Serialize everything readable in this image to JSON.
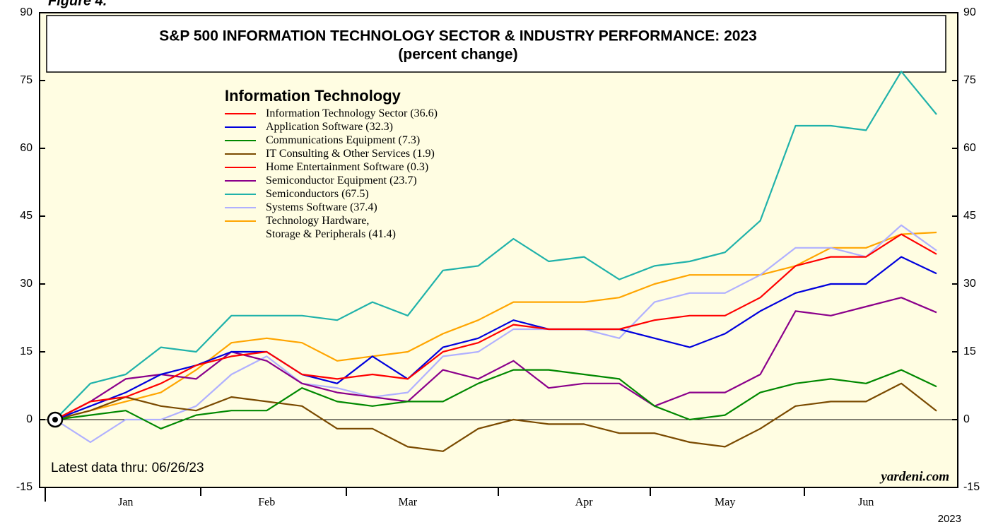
{
  "figure_label": "Figure 4.",
  "chart_data": {
    "type": "line",
    "title": "S&P 500 INFORMATION TECHNOLOGY SECTOR & INDUSTRY PERFORMANCE: 2023",
    "subtitle": "(percent change)",
    "legend_title": "Information Technology",
    "note": "Latest data thru: 06/26/23",
    "source": "yardeni.com",
    "year_label": "2023",
    "categories": [
      null,
      null,
      "Jan",
      null,
      null,
      null,
      "Feb",
      null,
      null,
      null,
      "Mar",
      null,
      null,
      null,
      null,
      "Apr",
      null,
      null,
      null,
      "May",
      null,
      null,
      null,
      "Jun",
      null,
      null
    ],
    "ylim": [
      -15,
      90
    ],
    "yticks": [
      -15,
      0,
      15,
      30,
      45,
      60,
      75,
      90
    ],
    "series": [
      {
        "name": "Information Technology Sector (36.6)",
        "color": "#ff0000",
        "values": [
          0,
          4,
          5,
          8,
          12,
          14,
          15,
          10,
          9,
          10,
          9,
          15,
          17,
          21,
          20,
          20,
          20,
          22,
          23,
          23,
          27,
          34,
          36,
          36,
          41,
          36.6
        ]
      },
      {
        "name": "Application Software (32.3)",
        "color": "#0000dd",
        "values": [
          0,
          3,
          6,
          10,
          12,
          15,
          15,
          10,
          8,
          14,
          9,
          16,
          18,
          22,
          20,
          20,
          20,
          18,
          16,
          19,
          24,
          28,
          30,
          30,
          36,
          32.3
        ]
      },
      {
        "name": "Communications Equipment (7.3)",
        "color": "#008800",
        "values": [
          0,
          1,
          2,
          -2,
          1,
          2,
          2,
          7,
          4,
          3,
          4,
          4,
          8,
          11,
          11,
          10,
          9,
          3,
          0,
          1,
          6,
          8,
          9,
          8,
          11,
          7.3
        ]
      },
      {
        "name": "IT Consulting & Other Services (1.9)",
        "color": "#7a4a00",
        "values": [
          0,
          2,
          5,
          3,
          2,
          5,
          4,
          3,
          -2,
          -2,
          -6,
          -7,
          -2,
          0,
          -1,
          -1,
          -3,
          -3,
          -5,
          -6,
          -2,
          3,
          4,
          4,
          8,
          1.9
        ]
      },
      {
        "name": "Home Entertainment Software (0.3)",
        "color": "#ff0000",
        "values": [
          null,
          null,
          null,
          null,
          null,
          null,
          null,
          null,
          null,
          null,
          null,
          null,
          null,
          null,
          null,
          null,
          null,
          null,
          null,
          null,
          null,
          null,
          null,
          null,
          null,
          null
        ]
      },
      {
        "name": "Semiconductor Equipment (23.7)",
        "color": "#8b008b",
        "values": [
          0,
          4,
          9,
          10,
          9,
          15,
          13,
          8,
          6,
          5,
          4,
          11,
          9,
          13,
          7,
          8,
          8,
          3,
          6,
          6,
          10,
          24,
          23,
          25,
          27,
          23.7
        ]
      },
      {
        "name": "Semiconductors (67.5)",
        "color": "#20b2aa",
        "values": [
          0,
          8,
          10,
          16,
          15,
          23,
          23,
          23,
          22,
          26,
          23,
          33,
          34,
          40,
          35,
          36,
          31,
          34,
          35,
          37,
          44,
          65,
          65,
          64,
          77,
          67.5
        ]
      },
      {
        "name": "Systems Software (37.4)",
        "color": "#b0b0ff",
        "values": [
          0,
          -5,
          0,
          0,
          3,
          10,
          14,
          8,
          7,
          5,
          6,
          14,
          15,
          20,
          20,
          20,
          18,
          26,
          28,
          28,
          32,
          38,
          38,
          36,
          43,
          37.4
        ]
      },
      {
        "name": "Technology Hardware,\nStorage & Peripherals (41.4)",
        "color": "#ffa500",
        "values": [
          0,
          2,
          4,
          6,
          11,
          17,
          18,
          17,
          13,
          14,
          15,
          19,
          22,
          26,
          26,
          26,
          27,
          30,
          32,
          32,
          32,
          34,
          38,
          38,
          41,
          41.4
        ]
      }
    ]
  }
}
